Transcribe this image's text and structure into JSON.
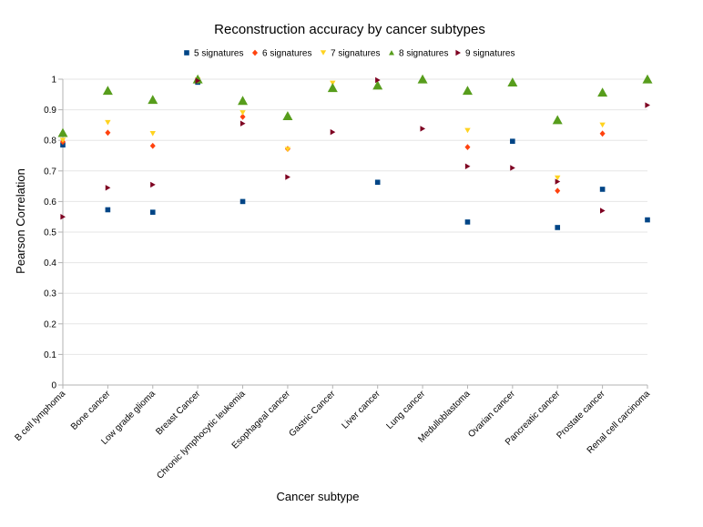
{
  "chart_data": {
    "type": "scatter",
    "title": "Reconstruction accuracy by cancer subtypes",
    "xlabel": "Cancer subtype",
    "ylabel": "Pearson Correlation",
    "ylim": [
      0,
      1
    ],
    "yticks": [
      "0",
      "0.1",
      "0.2",
      "0.3",
      "0.4",
      "0.5",
      "0.6",
      "0.7",
      "0.8",
      "0.9",
      "1"
    ],
    "grid": true,
    "legend_position": "top",
    "categories": [
      "B cell lymphoma",
      "Bone cancer",
      "Low grade glioma",
      "Breast Cancer",
      "Chronic lymphocytic leukemia",
      "Esophageal cancer",
      "Gastric Cancer",
      "Liver cancer",
      "Lung cancer",
      "Medulloblastoma",
      "Ovarian cancer",
      "Pancreatic cancer",
      "Prostate cancer",
      "Renal cell carcinoma"
    ],
    "series": [
      {
        "name": "5 signatures",
        "marker": "square",
        "color": "#004586",
        "values": [
          0.785,
          0.573,
          0.565,
          0.99,
          0.6,
          null,
          null,
          0.663,
          null,
          0.533,
          0.797,
          0.515,
          0.64,
          0.54
        ]
      },
      {
        "name": "6 signatures",
        "marker": "diamond",
        "color": "#ff420e",
        "values": [
          0.795,
          0.825,
          0.782,
          0.995,
          0.877,
          0.772,
          null,
          null,
          null,
          0.778,
          null,
          0.635,
          0.822,
          null
        ]
      },
      {
        "name": "7 signatures",
        "marker": "triangle-down",
        "color": "#ffd320",
        "values": [
          0.8,
          0.858,
          0.822,
          0.997,
          0.89,
          0.77,
          0.987,
          null,
          null,
          0.832,
          null,
          0.677,
          0.85,
          null
        ]
      },
      {
        "name": "8 signatures",
        "marker": "triangle-up",
        "color": "#579d1c",
        "values": [
          0.825,
          0.963,
          0.933,
          1.0,
          0.93,
          0.88,
          0.972,
          0.98,
          1.0,
          0.963,
          0.99,
          0.867,
          0.957,
          1.0
        ]
      },
      {
        "name": "9 signatures",
        "marker": "triangle-right",
        "color": "#7e0021",
        "values": [
          0.55,
          0.645,
          0.655,
          0.995,
          0.855,
          0.68,
          0.827,
          0.997,
          0.838,
          0.715,
          0.71,
          0.665,
          0.57,
          0.915
        ]
      }
    ]
  }
}
